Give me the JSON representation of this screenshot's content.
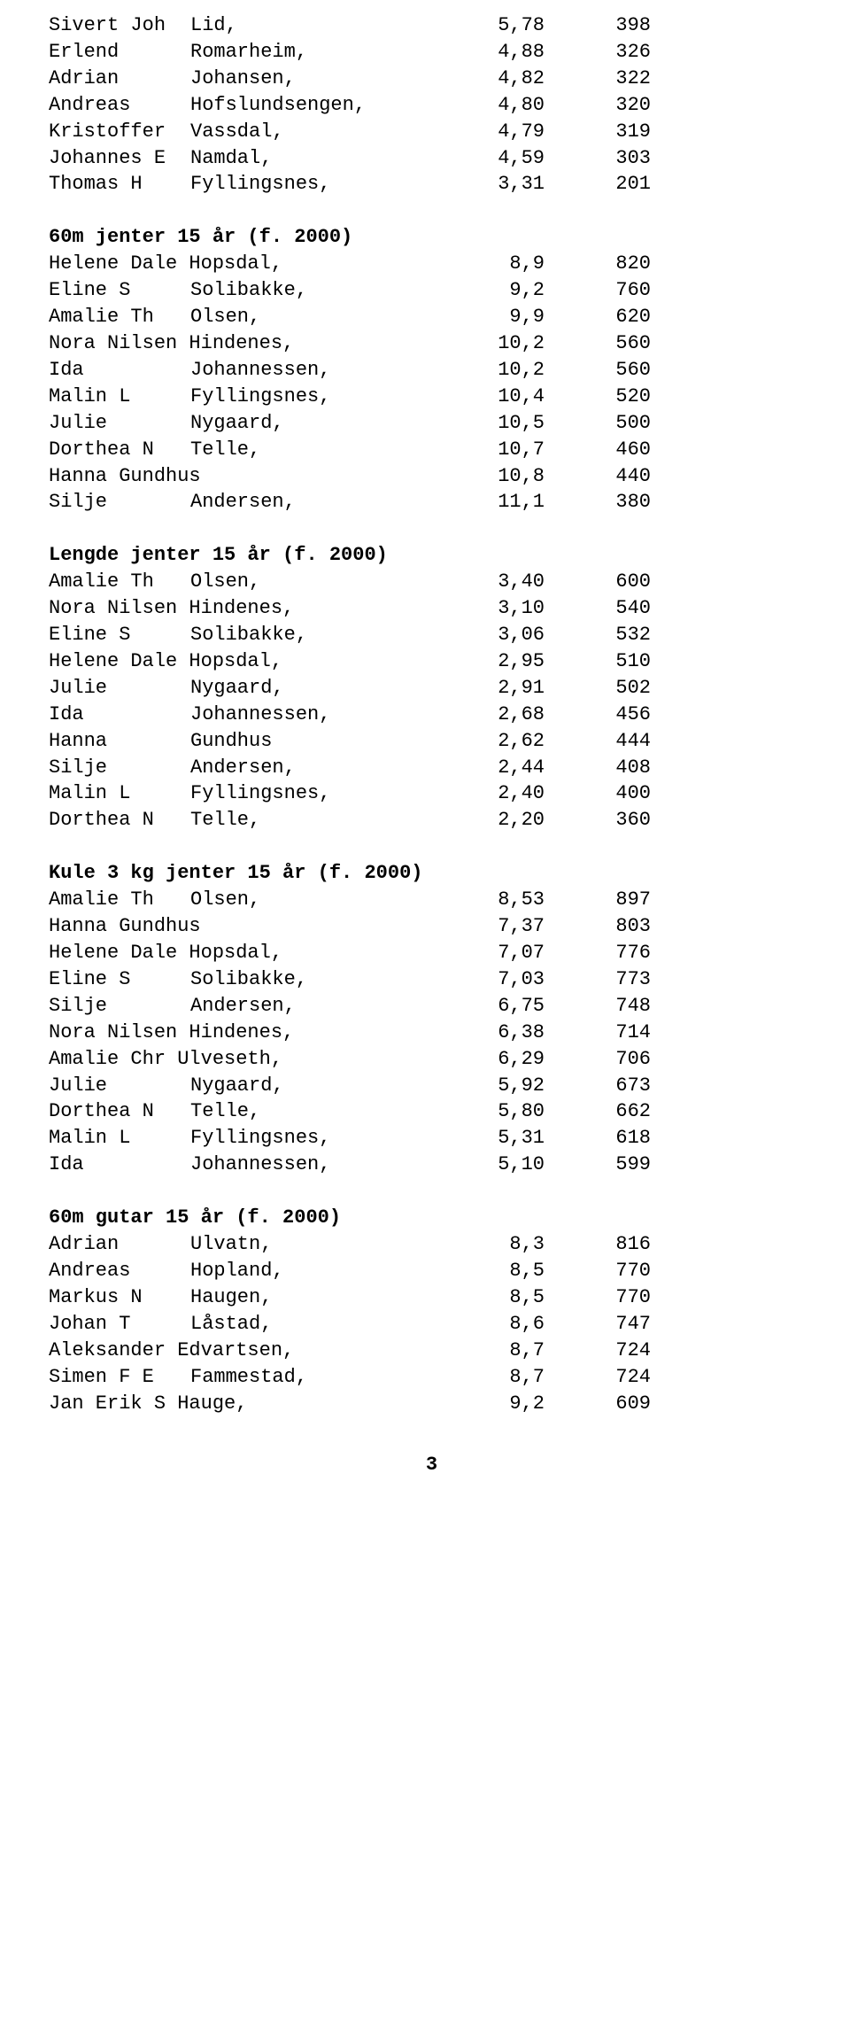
{
  "page_number": "3",
  "sections": [
    {
      "heading": null,
      "rows": [
        {
          "first": "Sivert Joh",
          "last": "Lid,",
          "val": "5,78",
          "score": "398"
        },
        {
          "first": "Erlend",
          "last": "Romarheim,",
          "val": "4,88",
          "score": "326"
        },
        {
          "first": "Adrian",
          "last": "Johansen,",
          "val": "4,82",
          "score": "322"
        },
        {
          "first": "Andreas",
          "last": "Hofslundsengen,",
          "val": "4,80",
          "score": "320"
        },
        {
          "first": "Kristoffer",
          "last": "Vassdal,",
          "val": "4,79",
          "score": "319"
        },
        {
          "first": "Johannes E",
          "last": "Namdal,",
          "val": "4,59",
          "score": "303"
        },
        {
          "first": "Thomas H",
          "last": "Fyllingsnes,",
          "val": "3,31",
          "score": "201"
        }
      ]
    },
    {
      "heading": "60m jenter 15 år (f. 2000)",
      "rows": [
        {
          "merge": true,
          "label": "Helene Dale Hopsdal,",
          "val": "8,9",
          "score": "820"
        },
        {
          "first": "Eline S",
          "last": "Solibakke,",
          "val": "9,2",
          "score": "760"
        },
        {
          "first": "Amalie Th",
          "last": "Olsen,",
          "val": "9,9",
          "score": "620"
        },
        {
          "merge": true,
          "label": "Nora Nilsen Hindenes,",
          "val": "10,2",
          "score": "560"
        },
        {
          "first": "Ida",
          "last": "Johannessen,",
          "val": "10,2",
          "score": "560"
        },
        {
          "first": "Malin L",
          "last": "Fyllingsnes,",
          "val": "10,4",
          "score": "520"
        },
        {
          "first": "Julie",
          "last": "Nygaard,",
          "val": "10,5",
          "score": "500"
        },
        {
          "first": "Dorthea N",
          "last": "Telle,",
          "val": "10,7",
          "score": "460"
        },
        {
          "merge": true,
          "label": "Hanna Gundhus",
          "val": "10,8",
          "score": "440"
        },
        {
          "first": "Silje",
          "last": "Andersen,",
          "val": "11,1",
          "score": "380"
        }
      ]
    },
    {
      "heading": "Lengde jenter 15 år (f. 2000)",
      "rows": [
        {
          "first": "Amalie Th",
          "last": "Olsen,",
          "val": "3,40",
          "score": "600"
        },
        {
          "merge": true,
          "label": "Nora Nilsen Hindenes,",
          "val": "3,10",
          "score": "540"
        },
        {
          "first": "Eline S",
          "last": "Solibakke,",
          "val": "3,06",
          "score": "532"
        },
        {
          "merge": true,
          "label": "Helene Dale Hopsdal,",
          "val": "2,95",
          "score": "510"
        },
        {
          "first": "Julie",
          "last": "Nygaard,",
          "val": "2,91",
          "score": "502"
        },
        {
          "first": "Ida",
          "last": "Johannessen,",
          "val": "2,68",
          "score": "456"
        },
        {
          "first": "Hanna",
          "last": "Gundhus",
          "val": "2,62",
          "score": "444"
        },
        {
          "first": "Silje",
          "last": "Andersen,",
          "val": "2,44",
          "score": "408"
        },
        {
          "first": "Malin L",
          "last": "Fyllingsnes,",
          "val": "2,40",
          "score": "400"
        },
        {
          "first": "Dorthea N",
          "last": "Telle,",
          "val": "2,20",
          "score": "360"
        }
      ]
    },
    {
      "heading": "Kule 3 kg jenter 15 år (f. 2000)",
      "rows": [
        {
          "first": "Amalie Th",
          "last": "Olsen,",
          "val": "8,53",
          "score": "897"
        },
        {
          "merge": true,
          "label": "Hanna Gundhus",
          "val": "7,37",
          "score": "803"
        },
        {
          "merge": true,
          "label": "Helene Dale Hopsdal,",
          "val": "7,07",
          "score": "776"
        },
        {
          "first": "Eline S",
          "last": "Solibakke,",
          "val": "7,03",
          "score": "773"
        },
        {
          "first": "Silje",
          "last": "Andersen,",
          "val": "6,75",
          "score": "748"
        },
        {
          "merge": true,
          "label": "Nora Nilsen Hindenes,",
          "val": "6,38",
          "score": "714"
        },
        {
          "merge": true,
          "label": "Amalie Chr Ulveseth,",
          "val": "6,29",
          "score": "706"
        },
        {
          "first": "Julie",
          "last": "Nygaard,",
          "val": "5,92",
          "score": "673"
        },
        {
          "first": "Dorthea N",
          "last": "Telle,",
          "val": "5,80",
          "score": "662"
        },
        {
          "first": "Malin L",
          "last": "Fyllingsnes,",
          "val": "5,31",
          "score": "618"
        },
        {
          "first": "Ida",
          "last": "Johannessen,",
          "val": "5,10",
          "score": "599"
        }
      ]
    },
    {
      "heading": "60m gutar 15 år (f. 2000)",
      "rows": [
        {
          "first": "Adrian",
          "last": "Ulvatn,",
          "val": "8,3",
          "score": "816"
        },
        {
          "first": "Andreas",
          "last": "Hopland,",
          "val": "8,5",
          "score": "770"
        },
        {
          "first": "Markus N",
          "last": "Haugen,",
          "val": "8,5",
          "score": "770"
        },
        {
          "first": "Johan T",
          "last": "Låstad,",
          "val": "8,6",
          "score": "747"
        },
        {
          "merge": true,
          "label": "Aleksander Edvartsen,",
          "val": "8,7",
          "score": "724"
        },
        {
          "first": "Simen F E",
          "last": "Fammestad,",
          "val": "8,7",
          "score": "724"
        },
        {
          "merge": true,
          "label": "Jan Erik S Hauge,",
          "val": "9,2",
          "score": "609"
        }
      ]
    }
  ]
}
